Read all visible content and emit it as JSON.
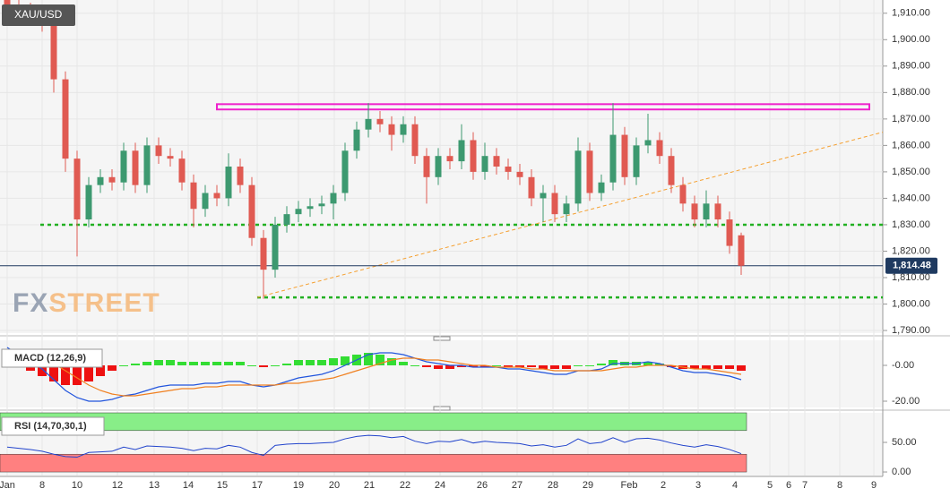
{
  "chart_data": [
    {
      "type": "candlestick",
      "title": "XAU/USD",
      "watermark": [
        "FX",
        "STREET"
      ],
      "x_labels": [
        "Jan",
        "8",
        "10",
        "12",
        "13",
        "14",
        "15",
        "17",
        "19",
        "20",
        "21",
        "22",
        "24",
        "26",
        "27",
        "28",
        "29",
        "Feb",
        "2",
        "3",
        "4",
        "5",
        "6",
        "7",
        "8",
        "9"
      ],
      "ylim": [
        1789,
        1915
      ],
      "yticks": [
        {
          "value": 1790,
          "label": "1,790.00"
        },
        {
          "value": 1800,
          "label": "1,800.00"
        },
        {
          "value": 1810,
          "label": "1,810.00"
        },
        {
          "value": 1820,
          "label": "1,820.00"
        },
        {
          "value": 1830,
          "label": "1,830.00"
        },
        {
          "value": 1840,
          "label": "1,840.00"
        },
        {
          "value": 1850,
          "label": "1,850.00"
        },
        {
          "value": 1860,
          "label": "1,860.00"
        },
        {
          "value": 1870,
          "label": "1,870.00"
        },
        {
          "value": 1880,
          "label": "1,880.00"
        },
        {
          "value": 1890,
          "label": "1,890.00"
        },
        {
          "value": 1900,
          "label": "1,900.00"
        },
        {
          "value": 1910,
          "label": "1,910.00"
        }
      ],
      "last_price": {
        "value": 1814.48,
        "label": "1,814.48"
      },
      "up_color": "#3d9970",
      "down_color": "#e05a52",
      "levels": [
        1830,
        1802.5
      ],
      "level_color": "#22b022",
      "zone": [
        1873.6,
        1875.6
      ],
      "zone_color": "#ee22cc",
      "trendline": [
        1802.5,
        1865
      ],
      "trendline_color": "#f5a030",
      "candles": [
        [
          1915,
          1918,
          1908,
          1912
        ],
        [
          1912,
          1915,
          1908,
          1911
        ],
        [
          1911,
          1914,
          1907,
          1910
        ],
        [
          1910,
          1913,
          1903,
          1906
        ],
        [
          1906,
          1909,
          1880,
          1885
        ],
        [
          1885,
          1888,
          1850,
          1855
        ],
        [
          1855,
          1858,
          1818,
          1832
        ],
        [
          1832,
          1848,
          1829,
          1845
        ],
        [
          1845,
          1851,
          1842,
          1848
        ],
        [
          1848,
          1851,
          1843,
          1846
        ],
        [
          1846,
          1861,
          1843,
          1858
        ],
        [
          1858,
          1861,
          1842,
          1845
        ],
        [
          1845,
          1863,
          1842,
          1860
        ],
        [
          1860,
          1863,
          1853,
          1856
        ],
        [
          1856,
          1859,
          1852,
          1855
        ],
        [
          1855,
          1858,
          1843,
          1846
        ],
        [
          1846,
          1849,
          1829,
          1836
        ],
        [
          1836,
          1845,
          1833,
          1842
        ],
        [
          1842,
          1845,
          1837,
          1840
        ],
        [
          1840,
          1857,
          1837,
          1852
        ],
        [
          1852,
          1855,
          1842,
          1845
        ],
        [
          1845,
          1848,
          1822,
          1825
        ],
        [
          1825,
          1828,
          1802,
          1813
        ],
        [
          1813,
          1833,
          1810,
          1830
        ],
        [
          1830,
          1837,
          1827,
          1834
        ],
        [
          1834,
          1839,
          1831,
          1836
        ],
        [
          1836,
          1840,
          1833,
          1837
        ],
        [
          1837,
          1841,
          1834,
          1838
        ],
        [
          1838,
          1845,
          1832,
          1842
        ],
        [
          1842,
          1861,
          1839,
          1858
        ],
        [
          1858,
          1869,
          1855,
          1866
        ],
        [
          1866,
          1876,
          1863,
          1870
        ],
        [
          1870,
          1873,
          1865,
          1868
        ],
        [
          1868,
          1871,
          1858,
          1864
        ],
        [
          1864,
          1871,
          1861,
          1868
        ],
        [
          1868,
          1871,
          1853,
          1856
        ],
        [
          1856,
          1859,
          1838,
          1848
        ],
        [
          1848,
          1859,
          1845,
          1856
        ],
        [
          1856,
          1859,
          1851,
          1854
        ],
        [
          1854,
          1868,
          1851,
          1862
        ],
        [
          1862,
          1865,
          1847,
          1850
        ],
        [
          1850,
          1861,
          1847,
          1856
        ],
        [
          1856,
          1859,
          1849,
          1852
        ],
        [
          1852,
          1855,
          1847,
          1850
        ],
        [
          1850,
          1853,
          1845,
          1848
        ],
        [
          1848,
          1851,
          1837,
          1840
        ],
        [
          1840,
          1845,
          1831,
          1842
        ],
        [
          1842,
          1845,
          1831,
          1834
        ],
        [
          1834,
          1841,
          1831,
          1838
        ],
        [
          1838,
          1863,
          1835,
          1858
        ],
        [
          1858,
          1861,
          1839,
          1842
        ],
        [
          1842,
          1849,
          1839,
          1846
        ],
        [
          1846,
          1876,
          1843,
          1864
        ],
        [
          1864,
          1867,
          1845,
          1848
        ],
        [
          1848,
          1863,
          1845,
          1860
        ],
        [
          1860,
          1872,
          1857,
          1862
        ],
        [
          1862,
          1865,
          1853,
          1856
        ],
        [
          1856,
          1859,
          1842,
          1845
        ],
        [
          1845,
          1848,
          1835,
          1838
        ],
        [
          1838,
          1841,
          1829,
          1832
        ],
        [
          1832,
          1843,
          1829,
          1838
        ],
        [
          1838,
          1841,
          1829,
          1832
        ],
        [
          1832,
          1835,
          1819,
          1822
        ],
        [
          1826,
          1827,
          1811,
          1814.48
        ]
      ]
    },
    {
      "type": "macd",
      "title": "MACD (12,26,9)",
      "ylim": [
        -23.5,
        14
      ],
      "yticks": [
        {
          "value": 0,
          "label": "-0.00"
        },
        {
          "value": -20,
          "label": "-20.00"
        }
      ],
      "macd_color": "#2255dd",
      "signal_color": "#f08020",
      "up_color": "#33dd33",
      "down_color": "#ee1111",
      "macd": [
        10,
        6,
        2,
        -2,
        -8,
        -14,
        -18,
        -20,
        -20,
        -19,
        -17,
        -16,
        -14,
        -12,
        -11,
        -11,
        -11,
        -10,
        -10,
        -9,
        -9,
        -11,
        -12,
        -11,
        -9,
        -7,
        -6,
        -5,
        -3,
        0,
        3,
        6,
        7,
        7,
        6,
        4,
        2,
        1,
        0,
        0,
        -1,
        -1,
        -1,
        -2,
        -2,
        -3,
        -4,
        -5,
        -5,
        -3,
        -3,
        -2,
        1,
        1,
        1,
        2,
        1,
        -1,
        -3,
        -4,
        -4,
        -5,
        -6,
        -8
      ],
      "signal": [
        6,
        6,
        5,
        4,
        1,
        -3,
        -7,
        -11,
        -14,
        -16,
        -17,
        -17,
        -16,
        -15,
        -14,
        -13,
        -13,
        -12,
        -12,
        -11,
        -11,
        -11,
        -11,
        -11,
        -10,
        -10,
        -9,
        -8,
        -7,
        -5,
        -3,
        -1,
        1,
        3,
        4,
        4,
        3,
        3,
        2,
        1,
        0,
        0,
        -1,
        -1,
        -1,
        -2,
        -2,
        -3,
        -3,
        -3,
        -3,
        -3,
        -2,
        -1,
        -1,
        0,
        0,
        0,
        -1,
        -2,
        -2,
        -3,
        -4,
        -5
      ],
      "histogram": [
        4,
        0,
        -3,
        -6,
        -9,
        -11,
        -11,
        -9,
        -6,
        -3,
        0,
        1,
        2,
        3,
        3,
        2,
        2,
        2,
        2,
        2,
        2,
        0,
        -1,
        0,
        1,
        3,
        3,
        3,
        4,
        5,
        6,
        7,
        6,
        4,
        2,
        0,
        -1,
        -2,
        -2,
        -1,
        -1,
        -1,
        0,
        -1,
        -1,
        -1,
        -2,
        -2,
        -2,
        0,
        0,
        1,
        3,
        2,
        2,
        2,
        1,
        -1,
        -2,
        -2,
        -2,
        -2,
        -2,
        -3
      ]
    },
    {
      "type": "rsi",
      "title": "RSI (14,70,30,1)",
      "ylim": [
        -6,
        100
      ],
      "yticks": [
        {
          "value": 50,
          "label": "50.00"
        },
        {
          "value": 0,
          "label": "0.00"
        }
      ],
      "overbought": [
        70,
        100
      ],
      "oversold": [
        0,
        30
      ],
      "overbought_color": "#88ee88",
      "oversold_color": "#ff8080",
      "color": "#2244cc",
      "values": [
        42,
        40,
        38,
        35,
        30,
        26,
        25,
        33,
        34,
        35,
        42,
        38,
        44,
        43,
        42,
        40,
        36,
        40,
        39,
        45,
        42,
        33,
        28,
        45,
        47,
        48,
        48,
        49,
        50,
        56,
        60,
        62,
        61,
        58,
        60,
        52,
        48,
        52,
        51,
        55,
        49,
        52,
        50,
        49,
        48,
        44,
        46,
        42,
        45,
        56,
        48,
        50,
        58,
        50,
        56,
        57,
        54,
        49,
        45,
        42,
        46,
        43,
        38,
        31
      ]
    }
  ]
}
